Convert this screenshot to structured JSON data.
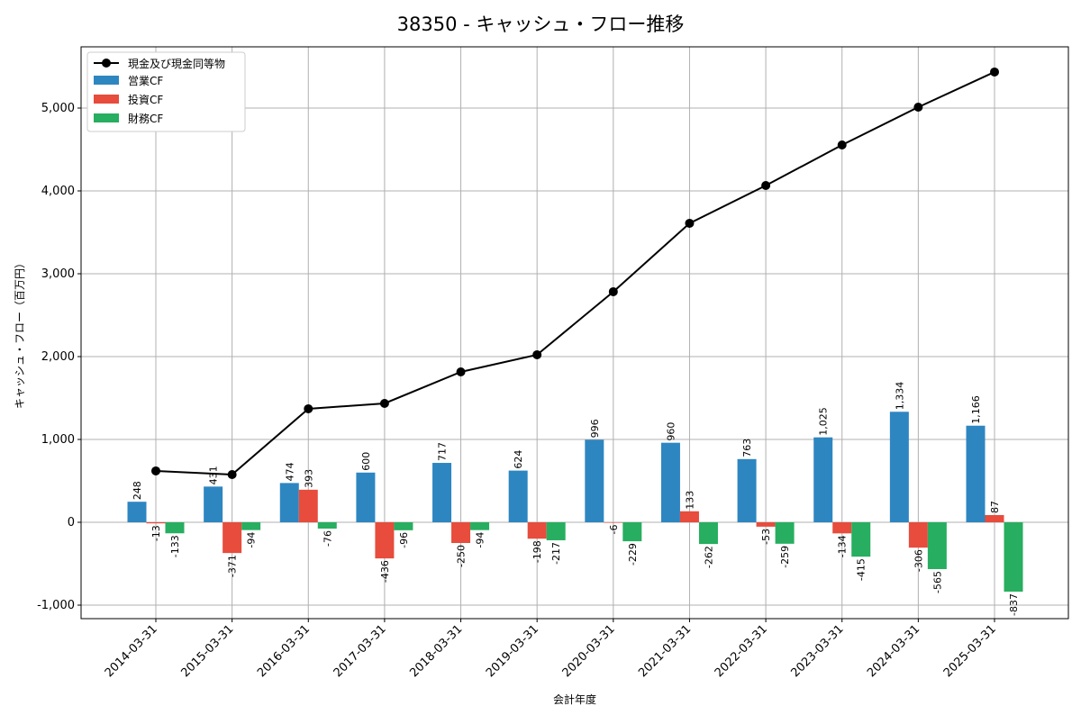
{
  "chart_data": {
    "type": "bar",
    "title": "38350 - キャッシュ・フロー推移",
    "xlabel": "会計年度",
    "ylabel": "キャッシュ・フロー（百万円）",
    "ylim": [
      -1163,
      5739
    ],
    "yticks": [
      -1000,
      0,
      1000,
      2000,
      3000,
      4000,
      5000
    ],
    "ytick_labels": [
      "-1,000",
      "0",
      "1,000",
      "2,000",
      "3,000",
      "4,000",
      "5,000"
    ],
    "grid": true,
    "legend_position": "top-left",
    "categories": [
      "2014-03-31",
      "2015-03-31",
      "2016-03-31",
      "2017-03-31",
      "2018-03-31",
      "2019-03-31",
      "2020-03-31",
      "2021-03-31",
      "2022-03-31",
      "2023-03-31",
      "2024-03-31",
      "2025-03-31"
    ],
    "line": {
      "name": "現金及び現金同等物",
      "color": "#000000",
      "values": [
        620,
        576,
        1370,
        1435,
        1815,
        2022,
        2783,
        3609,
        4065,
        4554,
        5011,
        5435
      ]
    },
    "series": [
      {
        "name": "営業CF",
        "color": "#2e86c1",
        "values": [
          248,
          431,
          474,
          600,
          717,
          624,
          996,
          960,
          763,
          1025,
          1334,
          1166
        ]
      },
      {
        "name": "投資CF",
        "color": "#e74c3c",
        "values": [
          -13,
          -371,
          393,
          -436,
          -250,
          -198,
          -6,
          133,
          -53,
          -134,
          -306,
          87
        ]
      },
      {
        "name": "財務CF",
        "color": "#27ae60",
        "values": [
          -133,
          -94,
          -76,
          -96,
          -94,
          -217,
          -229,
          -262,
          -259,
          -415,
          -565,
          -837
        ]
      }
    ]
  }
}
